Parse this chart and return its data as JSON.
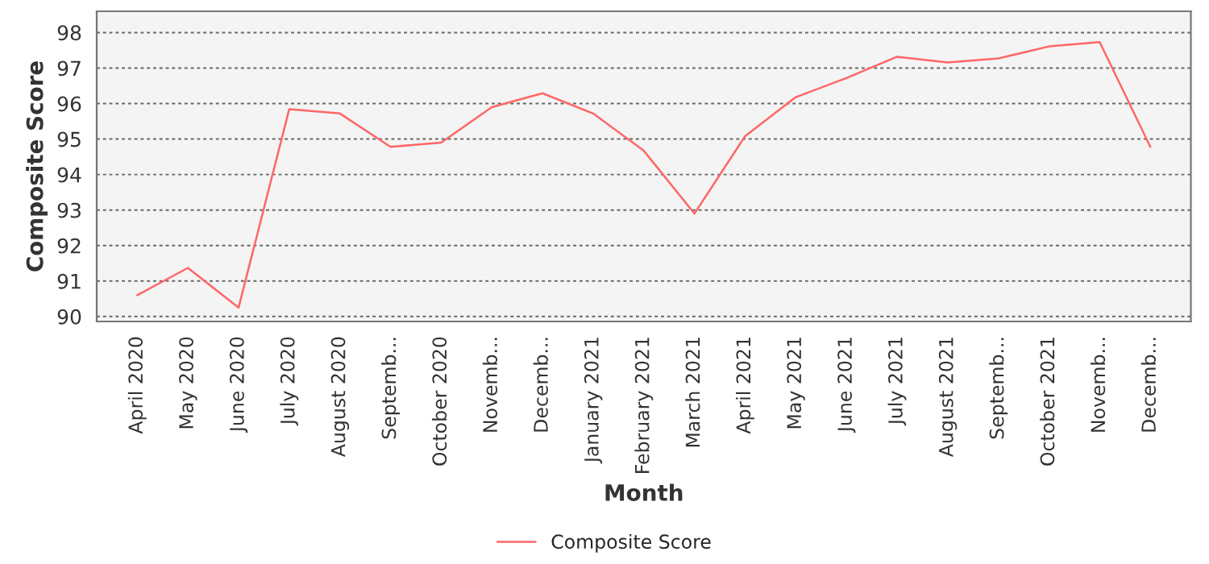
{
  "chart_data": {
    "type": "line",
    "xlabel": "Month",
    "ylabel": "Composite Score",
    "categories": [
      "April 2020",
      "May 2020",
      "June 2020",
      "July 2020",
      "August 2020",
      "Septemb...",
      "October 2020",
      "Novemb...",
      "Decemb...",
      "January 2021",
      "February 2021",
      "March 2021",
      "April 2021",
      "May 2021",
      "June 2021",
      "July 2021",
      "August 2021",
      "Septemb...",
      "October 2021",
      "Novemb...",
      "Decemb..."
    ],
    "series": [
      {
        "name": "Composite Score",
        "color": "#ff6666",
        "values": [
          90.6,
          91.37,
          90.25,
          95.84,
          95.72,
          94.78,
          94.9,
          95.9,
          96.29,
          95.72,
          94.67,
          92.9,
          95.08,
          96.18,
          96.72,
          97.32,
          97.16,
          97.27,
          97.61,
          97.73,
          94.78
        ]
      }
    ],
    "ylim": [
      89.86,
      98.6
    ],
    "yticks": [
      90,
      91,
      92,
      93,
      94,
      95,
      96,
      97,
      98
    ],
    "grid": "y",
    "legend": "bottom",
    "marker": "none",
    "line_style": "solid"
  }
}
